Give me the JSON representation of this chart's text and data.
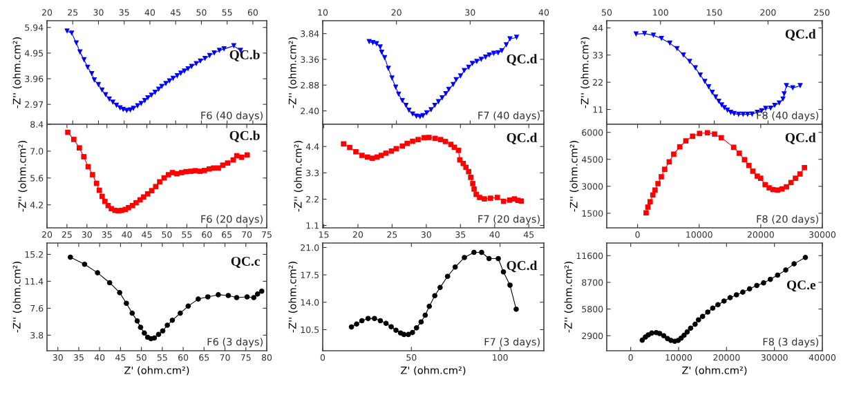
{
  "chart_data": [
    {
      "type": "line",
      "marker": "triangle",
      "line_style": "solid",
      "grid": false,
      "ylabel": "-Z'' (ohm.cm²)",
      "annotations": [
        "QC.b",
        "F6 (40 days)"
      ],
      "xlim": [
        20,
        62.7
      ],
      "ylim": [
        2.2,
        6.2
      ],
      "xticks": [
        20,
        25,
        30,
        35,
        40,
        45,
        50,
        55,
        60
      ],
      "yticks": [
        5.94,
        4.95,
        3.96,
        2.97
      ],
      "x": [
        23.9,
        24.8,
        25.7,
        26.4,
        27.2,
        27.9,
        28.7,
        29.2,
        30.0,
        30.7,
        31.4,
        32.1,
        32.8,
        33.5,
        34.2,
        34.8,
        35.5,
        36.2,
        36.8,
        37.6,
        38.3,
        39.0,
        39.6,
        40.3,
        41.0,
        41.7,
        42.3,
        43.1,
        43.8,
        44.5,
        45.3,
        46.0,
        46.7,
        47.4,
        48.1,
        49.0,
        49.8,
        50.7,
        51.6,
        52.5,
        53.5,
        54.4,
        56.3,
        57.6
      ],
      "series": [
        {
          "color": "#0000ff",
          "values": [
            5.8,
            5.72,
            5.34,
            4.99,
            4.69,
            4.4,
            4.15,
            3.91,
            3.73,
            3.52,
            3.34,
            3.17,
            3.05,
            2.93,
            2.83,
            2.77,
            2.73,
            2.75,
            2.81,
            2.91,
            3.0,
            3.11,
            3.22,
            3.32,
            3.43,
            3.55,
            3.66,
            3.77,
            3.87,
            3.97,
            4.07,
            4.17,
            4.25,
            4.34,
            4.43,
            4.54,
            4.64,
            4.74,
            4.85,
            4.95,
            5.05,
            5.11,
            5.23,
            5.05
          ]
        }
      ]
    },
    {
      "type": "line",
      "marker": "triangle",
      "line_style": "solid",
      "grid": false,
      "ylabel": "-Z'' (ohm.cm²)",
      "annotations": [
        "QC.d",
        "F7 (40 days)"
      ],
      "xlim": [
        10,
        40
      ],
      "ylim": [
        2.15,
        4.08
      ],
      "xticks": [
        10,
        20,
        30,
        40
      ],
      "yticks": [
        3.84,
        3.36,
        2.88,
        {
          "value": 2.4,
          "label": "2.40"
        }
      ],
      "x": [
        16.3,
        16.8,
        17.3,
        17.8,
        18.0,
        18.4,
        18.9,
        19.4,
        19.9,
        20.3,
        20.8,
        21.3,
        21.7,
        22.2,
        22.7,
        23.2,
        23.6,
        24.1,
        24.7,
        25.2,
        25.7,
        26.2,
        26.7,
        27.1,
        27.7,
        28.1,
        28.7,
        29.2,
        29.8,
        30.3,
        30.9,
        31.5,
        32.1,
        32.6,
        33.2,
        33.8,
        34.3,
        34.9,
        35.4,
        36.3
      ],
      "series": [
        {
          "color": "#0000ff",
          "values": [
            3.69,
            3.67,
            3.65,
            3.59,
            3.49,
            3.39,
            3.19,
            3.01,
            2.84,
            2.71,
            2.59,
            2.5,
            2.41,
            2.34,
            2.3,
            2.29,
            2.31,
            2.36,
            2.42,
            2.5,
            2.57,
            2.64,
            2.72,
            2.8,
            2.89,
            2.98,
            3.05,
            3.15,
            3.21,
            3.28,
            3.32,
            3.36,
            3.4,
            3.44,
            3.47,
            3.48,
            3.52,
            3.63,
            3.74,
            3.77
          ]
        }
      ]
    },
    {
      "type": "line",
      "marker": "triangle",
      "line_style": "solid",
      "grid": false,
      "ylabel": "-Z'' (ohm.cm²)",
      "annotations": [
        "QC.d",
        "F8 (40 days)"
      ],
      "xlim": [
        50,
        250.5
      ],
      "ylim": [
        5.0,
        46.9
      ],
      "xticks": [
        50,
        100,
        150,
        200,
        250
      ],
      "yticks": [
        44,
        33,
        22,
        11
      ],
      "x": [
        77.3,
        85.2,
        93.4,
        100.9,
        108.7,
        115.4,
        121.3,
        127.1,
        132.4,
        137.0,
        141.2,
        144.8,
        148.1,
        151.3,
        154.2,
        156.9,
        159.4,
        162.2,
        165.3,
        168.4,
        172.6,
        176.8,
        181.0,
        185.2,
        190.0,
        194.0,
        197.8,
        202.4,
        206.2,
        210.4,
        213.9,
        215.0,
        217.1,
        223.0,
        229.9
      ],
      "series": [
        {
          "color": "#0000ff",
          "values": [
            41.5,
            41.7,
            41.0,
            39.7,
            37.8,
            35.6,
            33.0,
            30.4,
            27.8,
            24.9,
            22.3,
            20.1,
            17.9,
            16.0,
            14.3,
            12.8,
            11.7,
            10.7,
            9.8,
            9.3,
            9.0,
            9.0,
            9.0,
            9.1,
            9.8,
            10.4,
            11.4,
            11.5,
            12.6,
            13.6,
            15.2,
            17.3,
            20.6,
            19.7,
            20.6
          ]
        }
      ]
    },
    {
      "type": "line",
      "marker": "square",
      "line_style": "solid",
      "grid": false,
      "ylabel": "-Z'' (ohm.cm²)",
      "annotations": [
        "QC.b",
        "F6 (20 days)"
      ],
      "xlim": [
        20,
        75
      ],
      "ylim": [
        3.0,
        8.4
      ],
      "xticks": [
        20,
        25,
        30,
        35,
        40,
        45,
        50,
        55,
        60,
        65,
        70,
        75
      ],
      "yticks": [
        8.4,
        {
          "value": 7,
          "label": "7.0"
        },
        5.6,
        4.2
      ],
      "x": [
        25.2,
        26.7,
        28.1,
        29.2,
        30.3,
        31.4,
        32.4,
        33.1,
        33.8,
        34.5,
        35.3,
        36.1,
        37.0,
        37.9,
        38.7,
        39.6,
        40.4,
        41.4,
        42.3,
        43.3,
        44.2,
        45.2,
        46.2,
        47.2,
        48.2,
        49.3,
        50.4,
        51.4,
        52.5,
        53.7,
        54.8,
        56.0,
        57.1,
        58.3,
        59.4,
        60.6,
        61.7,
        62.9,
        64.0,
        65.2,
        66.6,
        67.5,
        68.7,
        70.1
      ],
      "series": [
        {
          "color": "#ff0000",
          "values": [
            7.98,
            7.61,
            7.17,
            6.71,
            6.19,
            5.77,
            5.32,
            4.96,
            4.64,
            4.38,
            4.16,
            4.0,
            3.91,
            3.89,
            3.91,
            3.96,
            4.05,
            4.16,
            4.31,
            4.46,
            4.61,
            4.77,
            4.94,
            5.15,
            5.4,
            5.6,
            5.77,
            5.88,
            5.82,
            5.88,
            5.93,
            5.95,
            5.98,
            5.95,
            5.99,
            6.07,
            6.12,
            6.12,
            6.27,
            6.38,
            6.54,
            6.76,
            6.68,
            6.8
          ]
        }
      ]
    },
    {
      "type": "line",
      "marker": "square",
      "line_style": "solid",
      "grid": false,
      "ylabel": "-Z'' (ohm.cm²)",
      "annotations": [
        "QC.d",
        "F7 (20 days)"
      ],
      "xlim": [
        14.85,
        47.2
      ],
      "ylim": [
        1.0,
        5.33
      ],
      "xticks": [
        15,
        20,
        25,
        30,
        35,
        40,
        45
      ],
      "yticks": [
        4.4,
        3.3,
        2.2,
        1.1
      ],
      "x": [
        17.9,
        18.8,
        19.7,
        20.6,
        21.4,
        22.1,
        22.8,
        23.4,
        24.1,
        24.9,
        25.6,
        26.5,
        27.2,
        28.0,
        28.8,
        29.7,
        30.4,
        31.3,
        32.1,
        32.8,
        33.6,
        34.1,
        34.7,
        34.9,
        35.4,
        35.8,
        36.2,
        36.5,
        36.8,
        37.0,
        37.3,
        37.8,
        38.5,
        39.4,
        40.4,
        41.3,
        42.2,
        42.9,
        43.4,
        43.9
      ],
      "series": [
        {
          "color": "#ff0000",
          "values": [
            4.51,
            4.36,
            4.18,
            4.03,
            3.96,
            3.91,
            3.96,
            4.03,
            4.12,
            4.21,
            4.31,
            4.42,
            4.53,
            4.62,
            4.69,
            4.77,
            4.78,
            4.74,
            4.69,
            4.61,
            4.49,
            4.37,
            4.24,
            3.84,
            3.69,
            3.53,
            3.35,
            3.11,
            2.85,
            2.62,
            2.4,
            2.27,
            2.21,
            2.24,
            2.27,
            2.11,
            2.16,
            2.21,
            2.15,
            2.12
          ]
        }
      ]
    },
    {
      "type": "line",
      "marker": "square",
      "line_style": "solid",
      "grid": false,
      "ylabel": "-Z'' (ohm.cm²)",
      "annotations": [
        "QC.d",
        "F8 (20 days)"
      ],
      "xlim": [
        -5000,
        30000
      ],
      "ylim": [
        690,
        6450
      ],
      "xticks": [
        0,
        10000,
        20000,
        30000
      ],
      "yticks": [
        6000,
        4500,
        3000,
        1500
      ],
      "x": [
        1389,
        1674,
        2046,
        2483,
        2844,
        3315,
        3863,
        4410,
        5142,
        5875,
        6860,
        7844,
        8938,
        10065,
        11345,
        12505,
        13599,
        15612,
        16520,
        17362,
        18084,
        18708,
        19441,
        19988,
        20711,
        21368,
        21989,
        22722,
        23444,
        24177,
        24910,
        25632,
        26365,
        27098
      ],
      "series": [
        {
          "color": "#ff0000",
          "values": [
            1524,
            1844,
            2140,
            2519,
            2792,
            3149,
            3530,
            3947,
            4361,
            4788,
            5195,
            5526,
            5786,
            5942,
            5977,
            5907,
            5704,
            5170,
            4838,
            4482,
            4161,
            3840,
            3566,
            3449,
            3092,
            2914,
            2817,
            2792,
            2853,
            2970,
            3209,
            3449,
            3684,
            4040
          ]
        }
      ]
    },
    {
      "type": "line",
      "marker": "circle",
      "line_style": "solid",
      "grid": false,
      "xlabel": "Z' (ohm.cm²)",
      "ylabel": "-Z'' (ohm.cm²)",
      "annotations": [
        "QC.c",
        "F6 (3 days)"
      ],
      "xlim": [
        27.4,
        80
      ],
      "ylim": [
        1.6,
        16.8
      ],
      "xticks": [
        30,
        35,
        40,
        45,
        50,
        55,
        60,
        65,
        70,
        75,
        80
      ],
      "yticks": [
        15.2,
        11.4,
        7.6,
        3.8
      ],
      "x": [
        33.0,
        36.4,
        39.5,
        42.4,
        44.8,
        46.4,
        47.8,
        49.0,
        49.8,
        50.7,
        51.5,
        52.3,
        53.1,
        54.1,
        55.1,
        56.2,
        57.4,
        59.3,
        61.2,
        63.6,
        65.9,
        68.4,
        70.8,
        72.8,
        75.3,
        76.9,
        77.8,
        78.8
      ],
      "series": [
        {
          "color": "#000000",
          "values": [
            14.8,
            13.8,
            12.6,
            11.2,
            9.8,
            8.3,
            6.9,
            5.8,
            4.9,
            4.1,
            3.5,
            3.3,
            3.4,
            3.9,
            4.4,
            5.2,
            5.9,
            6.9,
            7.9,
            8.9,
            9.2,
            9.5,
            9.4,
            9.1,
            9.2,
            9.1,
            9.6,
            10.0
          ]
        }
      ]
    },
    {
      "type": "line",
      "marker": "circle",
      "line_style": "solid",
      "grid": false,
      "xlabel": "Z' (ohm.cm²)",
      "ylabel": "-Z'' (ohm.cm²)",
      "annotations": [
        "QC.d",
        "F7 (3 days)"
      ],
      "xlim": [
        0,
        124.7
      ],
      "ylim": [
        7.8,
        21.57
      ],
      "xticks": [
        0,
        50,
        100
      ],
      "yticks": [
        {
          "value": 21,
          "label": "21.0"
        },
        17.5,
        {
          "value": 14,
          "label": "14.0"
        },
        10.5
      ],
      "x": [
        16.2,
        19.1,
        22.1,
        25.6,
        29.2,
        32.5,
        35.7,
        38.6,
        41.3,
        43.9,
        45.8,
        48.3,
        50.6,
        52.9,
        55.5,
        57.8,
        60.1,
        63.2,
        66.2,
        70.4,
        74.7,
        79.9,
        85.3,
        89.6,
        93.8,
        99.0,
        101.9,
        105.6,
        109.1
      ],
      "series": [
        {
          "color": "#000000",
          "values": [
            10.84,
            11.21,
            11.64,
            11.92,
            11.92,
            11.64,
            11.3,
            10.87,
            10.42,
            10.07,
            9.88,
            9.88,
            10.13,
            10.73,
            11.49,
            12.35,
            13.48,
            14.84,
            15.89,
            17.31,
            18.5,
            19.72,
            20.38,
            20.38,
            19.58,
            19.58,
            17.88,
            16.18,
            13.11
          ]
        }
      ]
    },
    {
      "type": "line",
      "marker": "circle",
      "line_style": "solid",
      "grid": false,
      "xlabel": "Z' (ohm.cm²)",
      "ylabel": "-Z'' (ohm.cm²)",
      "annotations": [
        "QC.e",
        "F8 (3 days)"
      ],
      "xlim": [
        -5000,
        40000
      ],
      "ylim": [
        1270,
        12970
      ],
      "xticks": [
        0,
        10000,
        20000,
        30000,
        40000
      ],
      "yticks": [
        11600,
        8700,
        5800,
        2900
      ],
      "x": [
        2406,
        3066,
        3679,
        4387,
        5330,
        6038,
        6887,
        7689,
        8396,
        9198,
        9906,
        10519,
        11132,
        11792,
        12500,
        13443,
        14151,
        15000,
        16085,
        17122,
        18207,
        19481,
        20755,
        22076,
        23396,
        24811,
        26321,
        27736,
        29151,
        30660,
        32358,
        34103,
        36462
      ],
      "series": [
        {
          "color": "#000000",
          "values": [
            2419,
            2756,
            2996,
            3188,
            3236,
            3140,
            2900,
            2588,
            2395,
            2299,
            2395,
            2636,
            2948,
            3309,
            3717,
            4150,
            4630,
            4991,
            5471,
            5904,
            6264,
            6673,
            7033,
            7346,
            7634,
            7994,
            8355,
            8643,
            9028,
            9484,
            10037,
            10710,
            11407
          ]
        }
      ]
    }
  ]
}
